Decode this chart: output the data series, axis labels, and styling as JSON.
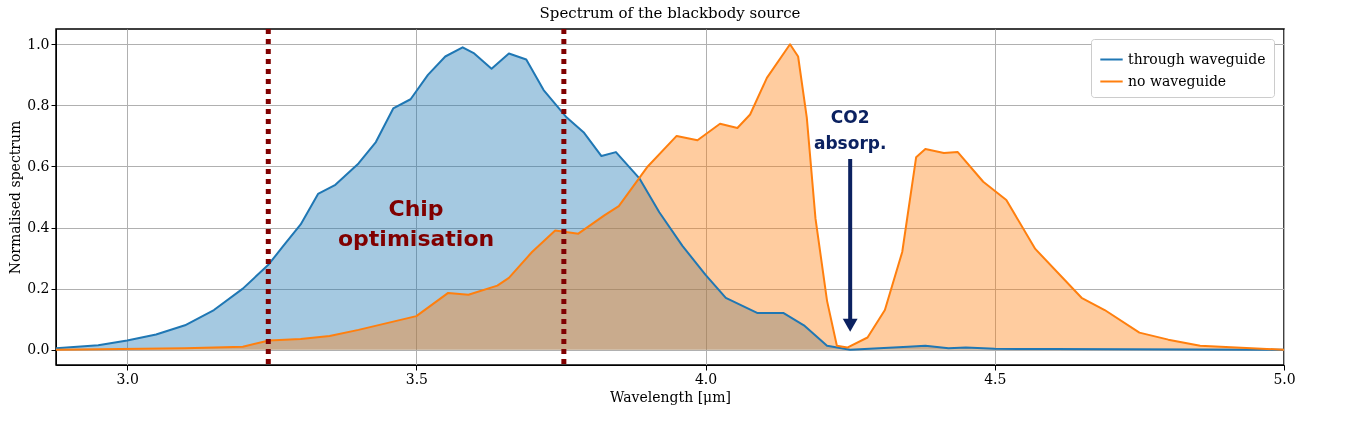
{
  "chart_data": {
    "type": "area",
    "title": "Spectrum of the blackbody source",
    "xlabel": "Wavelength [μm]",
    "ylabel": "Normalised spectrum",
    "xlim": [
      2.877,
      5.0
    ],
    "ylim": [
      -0.05,
      1.05
    ],
    "xticks": [
      {
        "value": 3.0,
        "label": "3.0"
      },
      {
        "value": 3.5,
        "label": "3.5"
      },
      {
        "value": 4.0,
        "label": "4.0"
      },
      {
        "value": 4.5,
        "label": "4.5"
      },
      {
        "value": 5.0,
        "label": "5.0"
      }
    ],
    "yticks": [
      {
        "value": 0,
        "label": "0.0"
      },
      0.2,
      0.4,
      0.6,
      0.8,
      {
        "value": 1.0,
        "label": "1.0"
      }
    ],
    "grid": true,
    "legend": "top right",
    "series": [
      {
        "name": "through waveguide",
        "color": "#1f77b4",
        "x": [
          2.877,
          2.95,
          3.0,
          3.05,
          3.1,
          3.15,
          3.2,
          3.245,
          3.27,
          3.3,
          3.33,
          3.36,
          3.4,
          3.43,
          3.46,
          3.49,
          3.52,
          3.55,
          3.58,
          3.6,
          3.63,
          3.66,
          3.69,
          3.72,
          3.76,
          3.79,
          3.82,
          3.845,
          3.886,
          3.92,
          3.96,
          4.0,
          4.035,
          4.09,
          4.135,
          4.17,
          4.21,
          4.25,
          4.3,
          4.35,
          4.38,
          4.42,
          4.45,
          4.5,
          4.6,
          5.0
        ],
        "values": [
          0.005,
          0.015,
          0.03,
          0.05,
          0.08,
          0.13,
          0.2,
          0.28,
          0.34,
          0.41,
          0.51,
          0.54,
          0.61,
          0.68,
          0.79,
          0.82,
          0.9,
          0.96,
          0.99,
          0.97,
          0.92,
          0.97,
          0.95,
          0.85,
          0.76,
          0.71,
          0.634,
          0.647,
          0.56,
          0.45,
          0.34,
          0.245,
          0.17,
          0.12,
          0.12,
          0.08,
          0.013,
          0.0,
          0.005,
          0.01,
          0.013,
          0.005,
          0.007,
          0.003,
          0.002,
          0.0
        ]
      },
      {
        "name": "no waveguide",
        "color": "#ff7f0e",
        "x": [
          2.877,
          3.1,
          3.2,
          3.245,
          3.3,
          3.35,
          3.4,
          3.5,
          3.555,
          3.59,
          3.64,
          3.66,
          3.7,
          3.74,
          3.78,
          3.825,
          3.85,
          3.9,
          3.95,
          3.986,
          4.025,
          4.055,
          4.077,
          4.106,
          4.146,
          4.16,
          4.175,
          4.19,
          4.21,
          4.227,
          4.245,
          4.28,
          4.31,
          4.34,
          4.364,
          4.38,
          4.412,
          4.436,
          4.48,
          4.52,
          4.57,
          4.65,
          4.69,
          4.75,
          4.8,
          4.855,
          5.0
        ],
        "values": [
          0.0,
          0.005,
          0.01,
          0.03,
          0.035,
          0.045,
          0.065,
          0.11,
          0.186,
          0.18,
          0.21,
          0.235,
          0.32,
          0.39,
          0.38,
          0.44,
          0.47,
          0.6,
          0.7,
          0.686,
          0.74,
          0.726,
          0.77,
          0.89,
          1.0,
          0.96,
          0.76,
          0.43,
          0.16,
          0.013,
          0.007,
          0.04,
          0.13,
          0.32,
          0.63,
          0.657,
          0.644,
          0.647,
          0.55,
          0.49,
          0.33,
          0.17,
          0.13,
          0.056,
          0.033,
          0.013,
          0.0
        ]
      }
    ],
    "ref_lines": [
      {
        "axis": "x",
        "value": 3.244,
        "color": "#800000",
        "line_style": "dotted"
      },
      {
        "axis": "x",
        "value": 3.755,
        "color": "#800000",
        "line_style": "dotted"
      }
    ],
    "annotations": [
      "Chip\noptimisation",
      {
        "text": "CO2\nabsorp.",
        "x": 4.25,
        "y": 0.08
      }
    ]
  }
}
